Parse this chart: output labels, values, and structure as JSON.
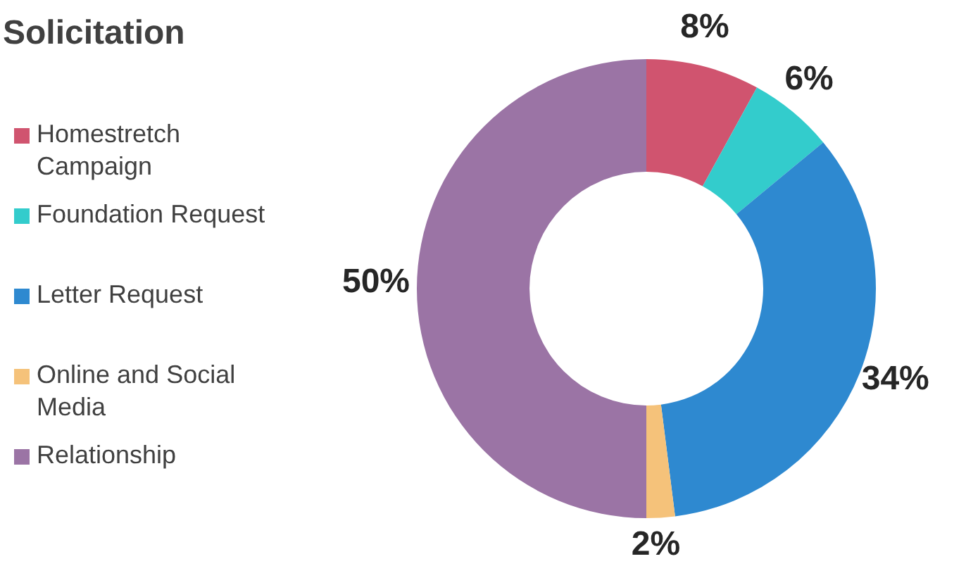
{
  "chart_data": {
    "type": "donut",
    "title": "Solicitation",
    "categories": [
      "Homestretch Campaign",
      "Foundation Request",
      "Letter Request",
      "Online and Social Media",
      "Relationship"
    ],
    "values": [
      8,
      6,
      34,
      2,
      50
    ],
    "colors": [
      "#d0546f",
      "#33cccc",
      "#2e89d0",
      "#f5c27a",
      "#9b74a5"
    ],
    "value_labels": [
      "8%",
      "6%",
      "34%",
      "2%",
      "50%"
    ],
    "legend": "left"
  }
}
